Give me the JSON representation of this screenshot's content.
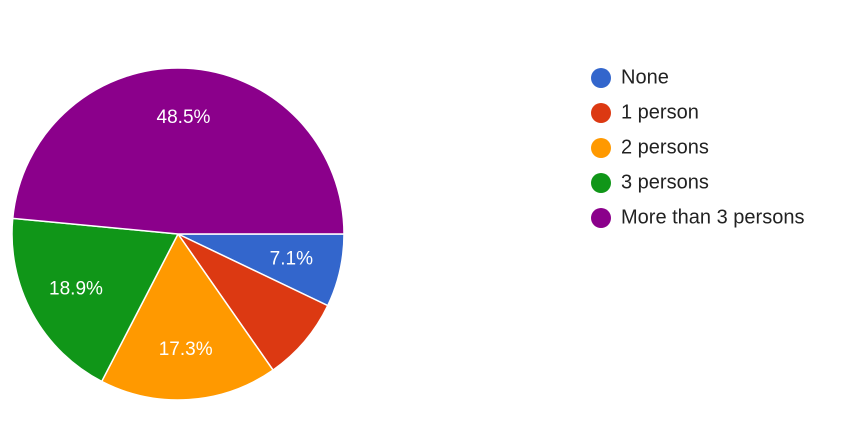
{
  "chart_data": {
    "type": "pie",
    "categories": [
      "None",
      "1 person",
      "2 persons",
      "3 persons",
      "More than 3 persons"
    ],
    "values": [
      7.1,
      8.2,
      17.3,
      18.9,
      48.5
    ],
    "value_labels": [
      "7.1%",
      null,
      "17.3%",
      "18.9%",
      "48.5%"
    ],
    "colors": [
      "#3366cc",
      "#dc3912",
      "#ff9900",
      "#109618",
      "#8b008b"
    ],
    "legend": "right"
  }
}
